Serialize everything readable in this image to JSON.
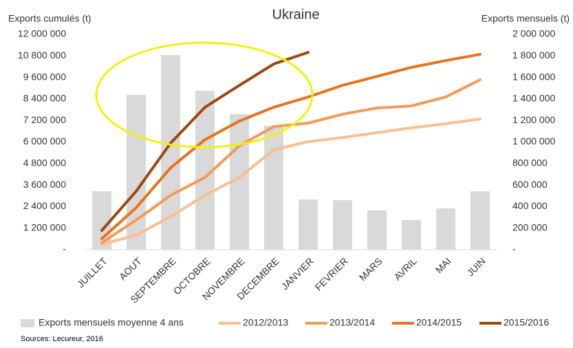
{
  "chart_data": {
    "type": "combo",
    "title": "Ukraine",
    "y_label": "Exports cumulés (t)",
    "y2_label": "Exports mensuels (t)",
    "source": "Sources: Lecureur, 2016",
    "categories": [
      "JUILLET",
      "AOUT",
      "SEPTEMBRE",
      "OCTOBRE",
      "NOVEMBRE",
      "DECEMBRE",
      "JANVIER",
      "FEVRIER",
      "MARS",
      "AVRIL",
      "MAI",
      "JUIN"
    ],
    "ylim": [
      0,
      12000000
    ],
    "yticks": [
      {
        "value": 0,
        "label": "-"
      },
      {
        "value": 1200000,
        "label": "1 200 000"
      },
      {
        "value": 2400000,
        "label": "2 400 000"
      },
      {
        "value": 3600000,
        "label": "3 600 000"
      },
      {
        "value": 4800000,
        "label": "4 800 000"
      },
      {
        "value": 6000000,
        "label": "6 000 000"
      },
      {
        "value": 7200000,
        "label": "7 200 000"
      },
      {
        "value": 8400000,
        "label": "8 400 000"
      },
      {
        "value": 9600000,
        "label": "9 600 000"
      },
      {
        "value": 10800000,
        "label": "10 800 000"
      },
      {
        "value": 12000000,
        "label": "12 000 000"
      }
    ],
    "y2lim": [
      0,
      2000000
    ],
    "y2ticks": [
      {
        "value": 0,
        "label": "-"
      },
      {
        "value": 200000,
        "label": "200 000"
      },
      {
        "value": 400000,
        "label": "400 000"
      },
      {
        "value": 600000,
        "label": "600 000"
      },
      {
        "value": 800000,
        "label": "800 000"
      },
      {
        "value": 1000000,
        "label": "1 000 000"
      },
      {
        "value": 1200000,
        "label": "1 200 000"
      },
      {
        "value": 1400000,
        "label": "1 400 000"
      },
      {
        "value": 1600000,
        "label": "1 600 000"
      },
      {
        "value": 1800000,
        "label": "1 800 000"
      },
      {
        "value": 2000000,
        "label": "2 000 000"
      }
    ],
    "series": [
      {
        "name": "Exports mensuels moyenne 4 ans",
        "type": "bar",
        "axis": "y2",
        "color": "#d9d9d9",
        "values": [
          543000,
          1438000,
          1808000,
          1476000,
          1259000,
          1150000,
          466000,
          460000,
          364000,
          275000,
          383000,
          543000
        ]
      },
      {
        "name": "2012/2013",
        "type": "line",
        "color": "#f9bf8f",
        "values": [
          307000,
          805000,
          1840000,
          3030000,
          4030000,
          5560000,
          6020000,
          6250000,
          6520000,
          6790000,
          7020000,
          7280000
        ]
      },
      {
        "name": "2013/2014",
        "type": "line",
        "color": "#f59a52",
        "values": [
          383000,
          1650000,
          3030000,
          4030000,
          5790000,
          6860000,
          7050000,
          7550000,
          7900000,
          8010000,
          8510000,
          9470000
        ]
      },
      {
        "name": "2014/2015",
        "type": "line",
        "color": "#e8731a",
        "values": [
          613000,
          2340000,
          4560000,
          6130000,
          7170000,
          7940000,
          8510000,
          9160000,
          9660000,
          10160000,
          10540000,
          10890000
        ]
      },
      {
        "name": "2015/2016",
        "type": "line",
        "color": "#9e470e",
        "values": [
          1070000,
          3260000,
          5940000,
          7940000,
          9160000,
          10350000,
          11000000,
          null,
          null,
          null,
          null,
          null
        ]
      }
    ]
  }
}
